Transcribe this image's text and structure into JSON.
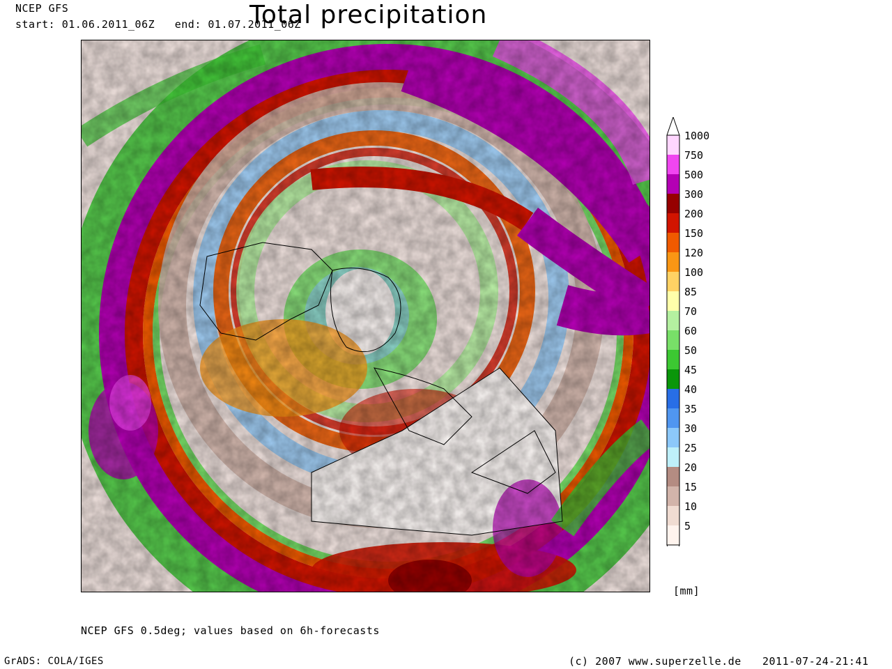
{
  "header": {
    "model": "NCEP GFS",
    "period": "start: 01.06.2011_06Z   end: 01.07.2011_06Z",
    "title": "Total precipitation"
  },
  "legend": {
    "unit": "[mm]",
    "levels": [
      {
        "label": "1000",
        "color": "#ffd6ff"
      },
      {
        "label": "750",
        "color": "#f046f0"
      },
      {
        "label": "500",
        "color": "#b400b4"
      },
      {
        "label": "300",
        "color": "#960000"
      },
      {
        "label": "200",
        "color": "#d21400"
      },
      {
        "label": "150",
        "color": "#f05a00"
      },
      {
        "label": "120",
        "color": "#fa9614"
      },
      {
        "label": "100",
        "color": "#ffd264"
      },
      {
        "label": "85",
        "color": "#ffffaa"
      },
      {
        "label": "70",
        "color": "#b4f0a0"
      },
      {
        "label": "60",
        "color": "#78e068"
      },
      {
        "label": "50",
        "color": "#3cc832"
      },
      {
        "label": "45",
        "color": "#0a960a"
      },
      {
        "label": "40",
        "color": "#286ee6"
      },
      {
        "label": "35",
        "color": "#5096f0"
      },
      {
        "label": "30",
        "color": "#8cc8fa"
      },
      {
        "label": "25",
        "color": "#bef0fa"
      },
      {
        "label": "20",
        "color": "#b48c82"
      },
      {
        "label": "15",
        "color": "#d2b4aa"
      },
      {
        "label": "10",
        "color": "#f0dcd2"
      },
      {
        "label": "5",
        "color": "#fff4ee"
      }
    ]
  },
  "footer": {
    "note": "NCEP GFS 0.5deg; values based on 6h-forecasts",
    "software": "GrADS: COLA/IGES",
    "copyright": "(c) 2007 www.superzelle.de",
    "timestamp": "2011-07-24-21:41"
  }
}
